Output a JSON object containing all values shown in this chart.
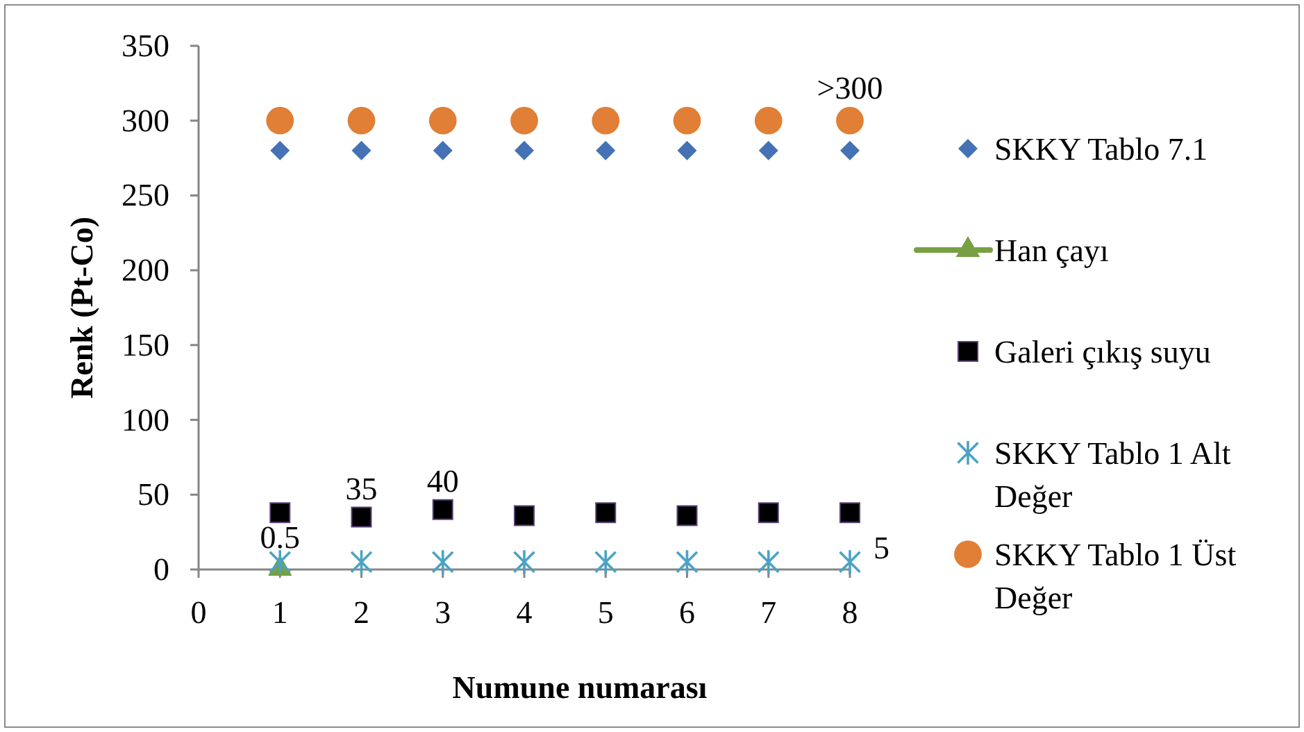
{
  "chart_data": {
    "type": "scatter",
    "xlabel": "Numune numarası",
    "ylabel": "Renk (Pt-Co)",
    "xlim": [
      0,
      8
    ],
    "xticks": [
      0,
      1,
      2,
      3,
      4,
      5,
      6,
      7,
      8
    ],
    "ylim": [
      0,
      350
    ],
    "yticks": [
      0,
      50,
      100,
      150,
      200,
      250,
      300,
      350
    ],
    "grid": false,
    "legend": "right",
    "series": [
      {
        "name": "SKKY Tablo 7.1",
        "marker": "diamond",
        "color": "#4472b4",
        "x": [
          1,
          2,
          3,
          4,
          5,
          6,
          7,
          8
        ],
        "values": [
          280,
          280,
          280,
          280,
          280,
          280,
          280,
          280
        ]
      },
      {
        "name": "Han çayı",
        "type": "line",
        "marker": "triangle",
        "color": "#77a043",
        "x": [
          1
        ],
        "values": [
          0.5
        ],
        "value_labels": [
          "0.5"
        ]
      },
      {
        "name": "Galeri çıkış suyu",
        "marker": "square",
        "color": "#000000",
        "x": [
          1,
          2,
          3,
          4,
          5,
          6,
          7,
          8
        ],
        "values": [
          38,
          35,
          40,
          36,
          38,
          36,
          38,
          38
        ],
        "value_labels": [
          null,
          "35",
          "40",
          null,
          null,
          null,
          null,
          null
        ]
      },
      {
        "name": "SKKY Tablo 1 Alt Değer",
        "marker": "cross",
        "color": "#4ba3c3",
        "x": [
          1,
          2,
          3,
          4,
          5,
          6,
          7,
          8
        ],
        "values": [
          5,
          5,
          5,
          5,
          5,
          5,
          5,
          5
        ],
        "value_labels": [
          null,
          null,
          null,
          null,
          null,
          null,
          null,
          "5"
        ]
      },
      {
        "name": "SKKY Tablo 1 Üst Değer",
        "marker": "circle",
        "color": "#e07f35",
        "x": [
          1,
          2,
          3,
          4,
          5,
          6,
          7,
          8
        ],
        "values": [
          300,
          300,
          300,
          300,
          300,
          300,
          300,
          300
        ],
        "value_labels": [
          null,
          null,
          null,
          null,
          null,
          null,
          null,
          ">300"
        ]
      }
    ]
  }
}
